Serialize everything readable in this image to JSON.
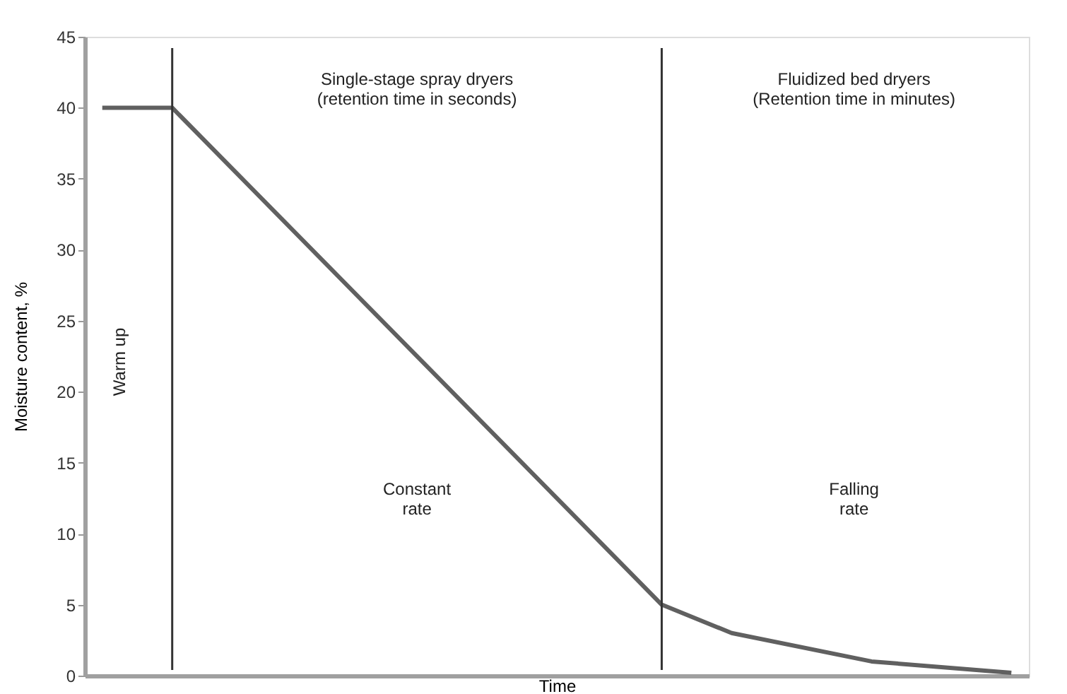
{
  "chart_data": {
    "type": "line",
    "xlabel": "Time",
    "ylabel": "Moisture content, %",
    "categories": [
      null,
      null,
      null,
      null,
      null,
      null,
      null,
      null,
      null,
      null,
      null,
      null,
      null,
      null,
      null,
      null,
      null,
      null,
      null,
      null,
      null,
      null,
      null,
      null,
      null,
      null,
      null
    ],
    "series": [
      {
        "color": "#606060",
        "values": [
          40,
          null,
          40,
          null,
          null,
          null,
          null,
          null,
          null,
          null,
          null,
          null,
          null,
          null,
          null,
          null,
          5,
          null,
          3,
          null,
          null,
          null,
          1,
          null,
          null,
          null,
          0.2
        ]
      }
    ],
    "ylim": [
      0,
      45
    ],
    "yticks": [
      0,
      5,
      10,
      15,
      20,
      25,
      30,
      35,
      40,
      45
    ],
    "tick_labels": "y",
    "grid": false,
    "marker": "none",
    "line_style": "solid",
    "annotations": [
      "Single-stage spray dryers\n(retention time in seconds)",
      "Fluidized bed dryers\n(Retention time in minutes)",
      "Warm up",
      "Constant\nrate",
      "Falling\nrate"
    ]
  }
}
